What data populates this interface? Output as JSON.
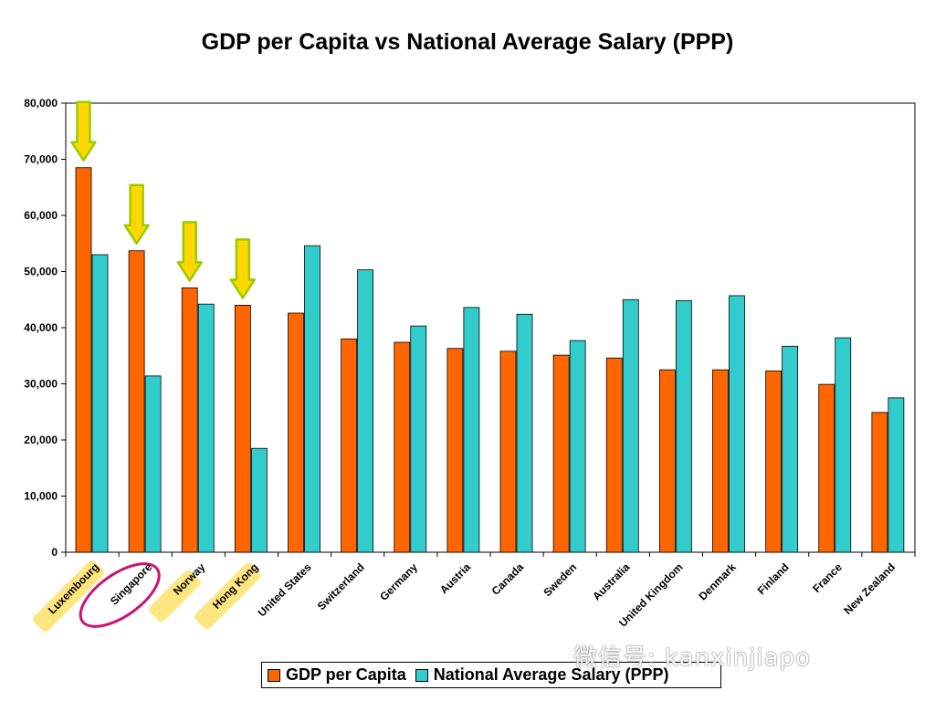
{
  "chart_data": {
    "type": "bar",
    "title": "GDP per Capita vs National Average Salary (PPP)",
    "categories": [
      "Luxembourg",
      "Singapore",
      "Norway",
      "Hong Kong",
      "United States",
      "Switzerland",
      "Germany",
      "Austria",
      "Canada",
      "Sweden",
      "Australia",
      "United Kingdom",
      "Denmark",
      "Finland",
      "France",
      "New Zealand"
    ],
    "series": [
      {
        "name": "GDP per Capita",
        "color": "#ff6600",
        "values": [
          68500,
          53700,
          47100,
          44000,
          42600,
          38000,
          37400,
          36300,
          35800,
          35100,
          34600,
          32500,
          32500,
          32300,
          29900,
          24900
        ]
      },
      {
        "name": "National Average Salary (PPP)",
        "color": "#33cccc",
        "values": [
          53000,
          31400,
          44200,
          18500,
          54600,
          50300,
          40300,
          43600,
          42400,
          37700,
          45000,
          44800,
          45700,
          36700,
          38200,
          27500
        ]
      }
    ],
    "ylim": [
      0,
      80000
    ],
    "yticks": [
      "0",
      "10,000",
      "20,000",
      "30,000",
      "40,000",
      "50,000",
      "60,000",
      "70,000",
      "80,000"
    ],
    "xlabel": "",
    "ylabel": "",
    "grid": false,
    "legend_position": "bottom",
    "highlighted_categories": [
      "Luxembourg",
      "Norway",
      "Hong Kong"
    ],
    "circled_category": "Singapore",
    "arrow_categories": [
      "Luxembourg",
      "Singapore",
      "Norway",
      "Hong Kong"
    ],
    "highlight_color": "#ffe680",
    "circle_color": "#cc1177",
    "arrow_color": "#ffd700"
  },
  "watermark": "微信号: kanxinjiapo"
}
